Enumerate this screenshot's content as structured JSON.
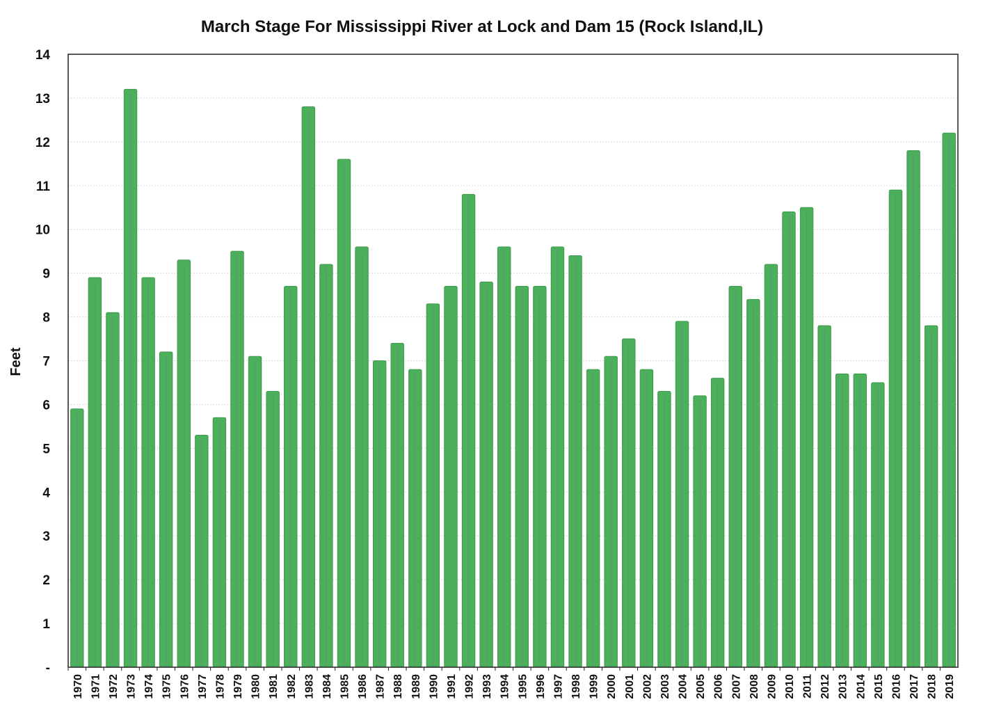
{
  "chart_data": {
    "type": "bar",
    "title": "March Stage For Mississippi River at Lock and Dam 15 (Rock Island,IL)",
    "xlabel": "",
    "ylabel": "Feet",
    "ylim": [
      0,
      14
    ],
    "yticks": [
      "-",
      "1",
      "2",
      "3",
      "4",
      "5",
      "6",
      "7",
      "8",
      "9",
      "10",
      "11",
      "12",
      "13",
      "14"
    ],
    "grid": true,
    "legend": "none",
    "bar_color": "#4caf5c",
    "bar_edge_color": "#3d9a4c",
    "categories": [
      "1970",
      "1971",
      "1972",
      "1973",
      "1974",
      "1975",
      "1976",
      "1977",
      "1978",
      "1979",
      "1980",
      "1981",
      "1982",
      "1983",
      "1984",
      "1985",
      "1986",
      "1987",
      "1988",
      "1989",
      "1990",
      "1991",
      "1992",
      "1993",
      "1994",
      "1995",
      "1996",
      "1997",
      "1998",
      "1999",
      "2000",
      "2001",
      "2002",
      "2003",
      "2004",
      "2005",
      "2006",
      "2007",
      "2008",
      "2009",
      "2010",
      "2011",
      "2012",
      "2013",
      "2014",
      "2015",
      "2016",
      "2017",
      "2018",
      "2019"
    ],
    "values": [
      5.9,
      8.9,
      8.1,
      13.2,
      8.9,
      7.2,
      9.3,
      5.3,
      5.7,
      9.5,
      7.1,
      6.3,
      8.7,
      12.8,
      9.2,
      11.6,
      9.6,
      7.0,
      7.4,
      6.8,
      8.3,
      8.7,
      10.8,
      8.8,
      9.6,
      8.7,
      8.7,
      9.6,
      9.4,
      6.8,
      7.1,
      7.5,
      6.8,
      6.3,
      7.9,
      6.2,
      6.6,
      8.7,
      8.4,
      9.2,
      10.4,
      10.5,
      7.8,
      6.7,
      6.7,
      6.5,
      10.9,
      11.8,
      7.8,
      12.2
    ]
  }
}
